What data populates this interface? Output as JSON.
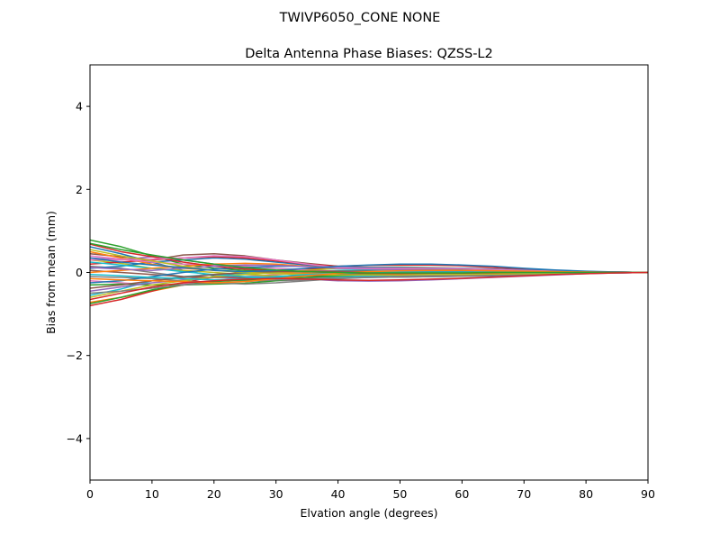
{
  "chart_data": {
    "type": "line",
    "suptitle": "TWIVP6050_CONE  NONE",
    "title": "Delta Antenna Phase Biases: QZSS-L2",
    "xlabel": "Elvation angle (degrees)",
    "ylabel": "Bias from mean (mm)",
    "xlim": [
      0,
      90
    ],
    "ylim": [
      -5,
      5
    ],
    "xticks": [
      0,
      10,
      20,
      30,
      40,
      50,
      60,
      70,
      80,
      90
    ],
    "xtick_labels": [
      "0",
      "10",
      "20",
      "30",
      "40",
      "50",
      "60",
      "70",
      "80",
      "90"
    ],
    "yticks": [
      -4,
      -2,
      0,
      2,
      4
    ],
    "ytick_labels": [
      "−4",
      "−2",
      "0",
      "2",
      "4"
    ],
    "grid": false,
    "legend": "none",
    "x": [
      0,
      5,
      10,
      15,
      20,
      25,
      30,
      35,
      40,
      45,
      50,
      55,
      60,
      65,
      70,
      75,
      80,
      85,
      90
    ],
    "series": [
      {
        "color": "#1f77b4",
        "values": [
          0.62,
          0.45,
          0.25,
          0.05,
          -0.08,
          -0.14,
          -0.15,
          -0.15,
          -0.14,
          -0.12,
          -0.11,
          -0.1,
          -0.09,
          -0.08,
          -0.06,
          -0.04,
          -0.02,
          -0.01,
          0.0
        ]
      },
      {
        "color": "#ff7f0e",
        "values": [
          -0.72,
          -0.6,
          -0.45,
          -0.3,
          -0.2,
          -0.15,
          -0.1,
          -0.05,
          0.0,
          0.03,
          0.05,
          0.06,
          0.06,
          0.05,
          0.04,
          0.02,
          0.01,
          0.0,
          0.0
        ]
      },
      {
        "color": "#2ca02c",
        "values": [
          0.78,
          0.62,
          0.4,
          0.2,
          0.1,
          0.05,
          0.02,
          0.0,
          -0.02,
          -0.03,
          -0.03,
          -0.03,
          -0.02,
          -0.02,
          -0.01,
          -0.01,
          0.0,
          0.0,
          0.0
        ]
      },
      {
        "color": "#d62728",
        "values": [
          -0.8,
          -0.65,
          -0.45,
          -0.25,
          -0.1,
          0.0,
          0.05,
          0.08,
          0.1,
          0.1,
          0.09,
          0.08,
          0.06,
          0.05,
          0.03,
          0.02,
          0.01,
          0.0,
          0.0
        ]
      },
      {
        "color": "#9467bd",
        "values": [
          0.35,
          0.3,
          0.38,
          0.3,
          0.2,
          0.1,
          0.05,
          0.0,
          -0.05,
          -0.08,
          -0.09,
          -0.09,
          -0.08,
          -0.07,
          -0.05,
          -0.03,
          -0.02,
          -0.01,
          0.0
        ]
      },
      {
        "color": "#8c564b",
        "values": [
          0.45,
          0.38,
          0.3,
          0.42,
          0.45,
          0.4,
          0.3,
          0.22,
          0.15,
          0.12,
          0.1,
          0.09,
          0.08,
          0.07,
          0.05,
          0.03,
          0.02,
          0.01,
          0.0
        ]
      },
      {
        "color": "#e377c2",
        "values": [
          -0.2,
          -0.25,
          -0.3,
          -0.28,
          -0.2,
          -0.1,
          -0.05,
          0.0,
          0.02,
          0.04,
          0.05,
          0.05,
          0.05,
          0.04,
          0.03,
          0.02,
          0.01,
          0.0,
          0.0
        ]
      },
      {
        "color": "#7f7f7f",
        "values": [
          0.15,
          0.1,
          0.0,
          -0.1,
          -0.18,
          -0.2,
          -0.2,
          -0.18,
          -0.15,
          -0.12,
          -0.1,
          -0.08,
          -0.07,
          -0.05,
          -0.04,
          -0.02,
          -0.01,
          0.0,
          0.0
        ]
      },
      {
        "color": "#bcbd22",
        "values": [
          0.3,
          0.22,
          0.1,
          0.05,
          0.0,
          -0.05,
          -0.08,
          -0.08,
          -0.07,
          -0.06,
          -0.05,
          -0.04,
          -0.03,
          -0.03,
          -0.02,
          -0.01,
          -0.01,
          0.0,
          0.0
        ]
      },
      {
        "color": "#17becf",
        "values": [
          -0.55,
          -0.4,
          -0.2,
          -0.1,
          -0.05,
          -0.02,
          0.0,
          0.02,
          0.05,
          0.06,
          0.07,
          0.07,
          0.06,
          0.05,
          0.04,
          0.03,
          0.01,
          0.0,
          0.0
        ]
      },
      {
        "color": "#1f77b4",
        "values": [
          0.1,
          0.15,
          0.25,
          0.3,
          0.35,
          0.32,
          0.25,
          0.18,
          0.12,
          0.1,
          0.09,
          0.08,
          0.07,
          0.05,
          0.04,
          0.02,
          0.01,
          0.0,
          0.0
        ]
      },
      {
        "color": "#ff7f0e",
        "values": [
          0.5,
          0.35,
          0.2,
          0.1,
          0.05,
          0.02,
          0.0,
          -0.02,
          -0.03,
          -0.04,
          -0.04,
          -0.04,
          -0.03,
          -0.03,
          -0.02,
          -0.01,
          0.0,
          0.0,
          0.0
        ]
      },
      {
        "color": "#2ca02c",
        "values": [
          -0.3,
          -0.28,
          -0.3,
          -0.3,
          -0.28,
          -0.26,
          -0.2,
          -0.12,
          -0.05,
          0.0,
          0.03,
          0.04,
          0.04,
          0.04,
          0.03,
          0.02,
          0.01,
          0.0,
          0.0
        ]
      },
      {
        "color": "#d62728",
        "values": [
          0.2,
          0.25,
          0.3,
          0.35,
          0.38,
          0.35,
          0.28,
          0.2,
          0.15,
          0.17,
          0.18,
          0.18,
          0.16,
          0.12,
          0.08,
          0.05,
          0.02,
          0.01,
          0.0
        ]
      },
      {
        "color": "#9467bd",
        "values": [
          -0.45,
          -0.35,
          -0.25,
          -0.18,
          -0.12,
          -0.1,
          -0.12,
          -0.16,
          -0.2,
          -0.21,
          -0.2,
          -0.18,
          -0.15,
          -0.12,
          -0.09,
          -0.06,
          -0.03,
          -0.01,
          0.0
        ]
      },
      {
        "color": "#8c564b",
        "values": [
          0.05,
          0.0,
          -0.05,
          -0.1,
          -0.12,
          -0.12,
          -0.1,
          -0.08,
          -0.05,
          -0.03,
          -0.02,
          -0.01,
          -0.01,
          0.0,
          0.0,
          0.0,
          0.0,
          0.0,
          0.0
        ]
      },
      {
        "color": "#e377c2",
        "values": [
          0.4,
          0.32,
          0.25,
          0.2,
          0.18,
          0.15,
          0.1,
          0.06,
          0.03,
          0.02,
          0.02,
          0.02,
          0.02,
          0.02,
          0.01,
          0.01,
          0.0,
          0.0,
          0.0
        ]
      },
      {
        "color": "#7f7f7f",
        "values": [
          -0.1,
          -0.12,
          -0.15,
          -0.2,
          -0.25,
          -0.28,
          -0.25,
          -0.2,
          -0.15,
          -0.1,
          -0.08,
          -0.06,
          -0.05,
          -0.04,
          -0.03,
          -0.02,
          -0.01,
          0.0,
          0.0
        ]
      },
      {
        "color": "#bcbd22",
        "values": [
          -0.6,
          -0.45,
          -0.3,
          -0.2,
          -0.1,
          -0.05,
          0.0,
          0.05,
          0.1,
          0.12,
          0.13,
          0.12,
          0.1,
          0.08,
          0.05,
          0.03,
          0.01,
          0.0,
          0.0
        ]
      },
      {
        "color": "#17becf",
        "values": [
          0.25,
          0.18,
          0.1,
          0.02,
          -0.05,
          -0.1,
          -0.12,
          -0.12,
          -0.1,
          -0.08,
          -0.06,
          -0.05,
          -0.04,
          -0.03,
          -0.02,
          -0.01,
          -0.01,
          0.0,
          0.0
        ]
      },
      {
        "color": "#1f77b4",
        "values": [
          -0.25,
          -0.2,
          -0.1,
          0.0,
          0.08,
          0.12,
          0.15,
          0.15,
          0.13,
          0.12,
          0.12,
          0.11,
          0.1,
          0.08,
          0.06,
          0.04,
          0.02,
          0.01,
          0.0
        ]
      },
      {
        "color": "#ff7f0e",
        "values": [
          0.0,
          0.05,
          0.1,
          0.15,
          0.2,
          0.22,
          0.2,
          0.15,
          0.1,
          0.08,
          0.07,
          0.06,
          0.05,
          0.04,
          0.03,
          0.02,
          0.01,
          0.0,
          0.0
        ]
      },
      {
        "color": "#2ca02c",
        "values": [
          -0.75,
          -0.6,
          -0.42,
          -0.3,
          -0.22,
          -0.18,
          -0.15,
          -0.12,
          -0.08,
          -0.05,
          -0.03,
          -0.02,
          -0.01,
          -0.01,
          0.0,
          0.0,
          0.0,
          0.0,
          0.0
        ]
      },
      {
        "color": "#d62728",
        "values": [
          0.68,
          0.5,
          0.38,
          0.25,
          0.15,
          0.08,
          0.04,
          0.02,
          0.0,
          -0.02,
          -0.03,
          -0.03,
          -0.03,
          -0.02,
          -0.02,
          -0.01,
          -0.01,
          0.0,
          0.0
        ]
      },
      {
        "color": "#9467bd",
        "values": [
          0.12,
          0.08,
          0.05,
          0.1,
          0.15,
          0.18,
          0.17,
          0.14,
          0.1,
          0.08,
          0.07,
          0.06,
          0.05,
          0.04,
          0.03,
          0.02,
          0.01,
          0.0,
          0.0
        ]
      },
      {
        "color": "#8c564b",
        "values": [
          -0.38,
          -0.3,
          -0.2,
          -0.12,
          -0.05,
          0.0,
          0.02,
          0.03,
          0.03,
          0.03,
          0.02,
          0.02,
          0.02,
          0.01,
          0.01,
          0.0,
          0.0,
          0.0,
          0.0
        ]
      },
      {
        "color": "#e377c2",
        "values": [
          0.3,
          0.3,
          0.32,
          0.35,
          0.4,
          0.38,
          0.3,
          0.2,
          0.12,
          0.1,
          0.1,
          0.1,
          0.09,
          0.07,
          0.05,
          0.03,
          0.02,
          0.01,
          0.0
        ]
      },
      {
        "color": "#7f7f7f",
        "values": [
          -0.5,
          -0.45,
          -0.38,
          -0.3,
          -0.25,
          -0.22,
          -0.18,
          -0.15,
          -0.13,
          -0.12,
          -0.11,
          -0.1,
          -0.09,
          -0.07,
          -0.05,
          -0.03,
          -0.02,
          -0.01,
          0.0
        ]
      },
      {
        "color": "#bcbd22",
        "values": [
          0.55,
          0.4,
          0.28,
          0.15,
          0.05,
          0.0,
          -0.03,
          -0.05,
          -0.06,
          -0.06,
          -0.06,
          -0.05,
          -0.05,
          -0.04,
          -0.03,
          -0.02,
          -0.01,
          0.0,
          0.0
        ]
      },
      {
        "color": "#17becf",
        "values": [
          -0.05,
          -0.08,
          -0.12,
          -0.15,
          -0.18,
          -0.15,
          -0.1,
          -0.05,
          -0.02,
          0.0,
          0.01,
          0.01,
          0.01,
          0.01,
          0.0,
          0.0,
          0.0,
          0.0,
          0.0
        ]
      },
      {
        "color": "#1f77b4",
        "values": [
          0.35,
          0.25,
          0.18,
          0.12,
          0.05,
          0.02,
          0.05,
          0.1,
          0.15,
          0.18,
          0.2,
          0.2,
          0.18,
          0.15,
          0.1,
          0.06,
          0.03,
          0.01,
          0.0
        ]
      },
      {
        "color": "#ff7f0e",
        "values": [
          -0.15,
          -0.18,
          -0.2,
          -0.22,
          -0.25,
          -0.22,
          -0.15,
          -0.08,
          -0.02,
          0.02,
          0.04,
          0.05,
          0.05,
          0.04,
          0.03,
          0.02,
          0.01,
          0.0,
          0.0
        ]
      },
      {
        "color": "#2ca02c",
        "values": [
          0.7,
          0.55,
          0.42,
          0.3,
          0.2,
          0.12,
          0.06,
          0.02,
          0.0,
          -0.01,
          -0.01,
          -0.01,
          -0.01,
          0.0,
          0.0,
          0.0,
          0.0,
          0.0,
          0.0
        ]
      },
      {
        "color": "#d62728",
        "values": [
          -0.65,
          -0.5,
          -0.35,
          -0.25,
          -0.2,
          -0.16,
          -0.14,
          -0.16,
          -0.18,
          -0.19,
          -0.18,
          -0.16,
          -0.14,
          -0.11,
          -0.08,
          -0.05,
          -0.03,
          -0.01,
          0.0
        ]
      }
    ]
  }
}
